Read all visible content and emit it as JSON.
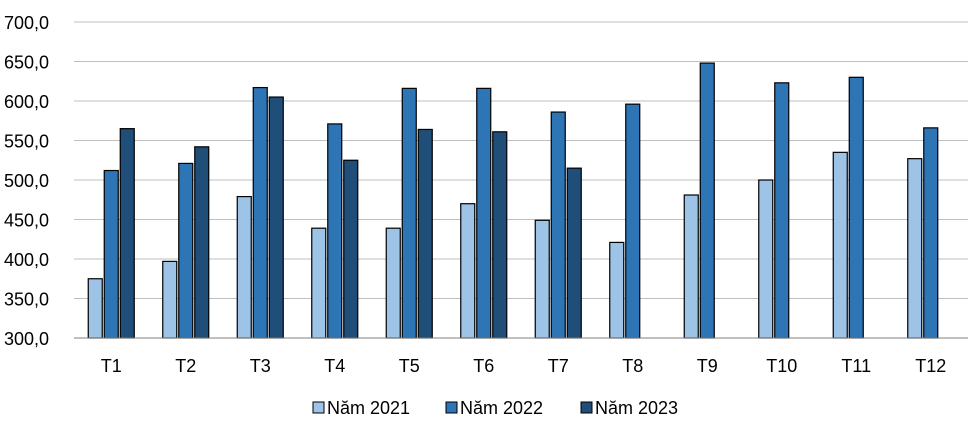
{
  "chart_data": {
    "type": "bar",
    "categories": [
      "T1",
      "T2",
      "T3",
      "T4",
      "T5",
      "T6",
      "T7",
      "T8",
      "T9",
      "T10",
      "T11",
      "T12"
    ],
    "series": [
      {
        "name": "Năm 2021",
        "color": "#9DC3E6",
        "values": [
          375,
          397,
          479,
          439,
          439,
          470,
          449,
          421,
          481,
          500,
          535,
          527
        ]
      },
      {
        "name": "Năm 2022",
        "color": "#2E75B6",
        "values": [
          512,
          521,
          617,
          571,
          616,
          616,
          586,
          596,
          648,
          623,
          630,
          566
        ]
      },
      {
        "name": "Năm 2023",
        "color": "#1F4E79",
        "values": [
          565,
          542,
          605,
          525,
          564,
          561,
          515,
          null,
          null,
          null,
          null,
          null
        ]
      }
    ],
    "y_tick_labels": [
      "300,0",
      "350,0",
      "400,0",
      "450,0",
      "500,0",
      "550,0",
      "600,0",
      "650,0",
      "700,0"
    ],
    "ylim": [
      300,
      700
    ],
    "grid": true,
    "legend_position": "bottom",
    "title": "",
    "xlabel": "",
    "ylabel": ""
  }
}
